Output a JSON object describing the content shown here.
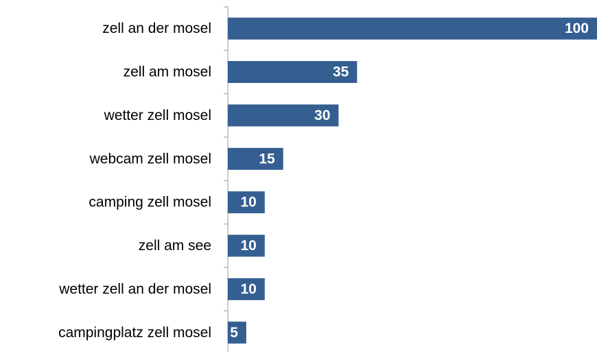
{
  "chart_data": {
    "type": "bar",
    "orientation": "horizontal",
    "categories": [
      "zell an der mosel",
      "zell am mosel",
      "wetter zell mosel",
      "webcam zell mosel",
      "camping zell mosel",
      "zell am see",
      "wetter zell an der mosel",
      "campingplatz zell mosel"
    ],
    "values": [
      100,
      35,
      30,
      15,
      10,
      10,
      10,
      5
    ],
    "color": "#355f91"
  }
}
